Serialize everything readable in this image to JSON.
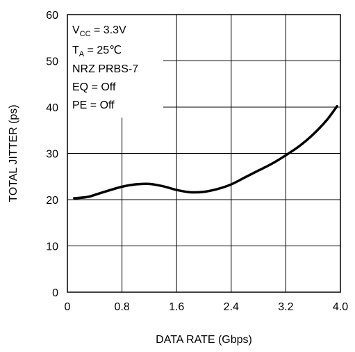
{
  "chart_data": {
    "type": "line",
    "title": "",
    "xlabel": "DATA RATE (Gbps)",
    "ylabel": "TOTAL JITTER (ps)",
    "xlim": [
      0,
      4.0
    ],
    "ylim": [
      0,
      60
    ],
    "x_ticks": [
      "0",
      "0.8",
      "1.6",
      "2.4",
      "3.2",
      "4.0"
    ],
    "y_ticks": [
      "0",
      "10",
      "20",
      "30",
      "40",
      "50",
      "60"
    ],
    "grid": true,
    "legend": "none",
    "annotations": [
      {
        "main": "V",
        "sub": "CC",
        "rest": " = 3.3V"
      },
      {
        "main": "T",
        "sub": "A",
        "rest": " = 25℃"
      },
      {
        "main": "NRZ PRBS-7",
        "sub": "",
        "rest": ""
      },
      {
        "main": "EQ = Off",
        "sub": "",
        "rest": ""
      },
      {
        "main": "PE = Off",
        "sub": "",
        "rest": ""
      }
    ],
    "series": [
      {
        "color": "#000000",
        "x": [
          0.1,
          0.3,
          0.5,
          0.8,
          1.0,
          1.2,
          1.4,
          1.6,
          1.8,
          2.0,
          2.2,
          2.4,
          2.6,
          2.8,
          3.0,
          3.2,
          3.4,
          3.6,
          3.8,
          3.95
        ],
        "y": [
          20.3,
          20.6,
          21.5,
          22.8,
          23.3,
          23.4,
          22.9,
          22.1,
          21.6,
          21.7,
          22.3,
          23.3,
          24.8,
          26.3,
          27.8,
          29.6,
          31.6,
          34.1,
          37.2,
          40.2
        ]
      }
    ]
  }
}
